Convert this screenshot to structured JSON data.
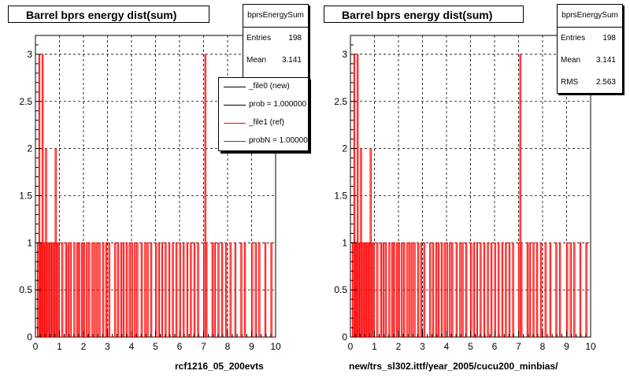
{
  "chart_data": [
    {
      "type": "histogram",
      "title": "Barrel bprs energy dist(sum)",
      "stats": {
        "name": "bprsEnergySum",
        "entries": "198",
        "mean": "3.141",
        "rms": "2.563"
      },
      "x_range": [
        0,
        10
      ],
      "y_range": [
        0,
        3.2
      ],
      "x_ticks": [
        "0",
        "1",
        "2",
        "3",
        "4",
        "5",
        "6",
        "7",
        "8",
        "9",
        "10"
      ],
      "y_ticks": [
        "0",
        "0.5",
        "1",
        "1.5",
        "2",
        "2.5",
        "3"
      ],
      "grid": true,
      "legend": [
        {
          "label": "_file0 (new)",
          "color": "#000000"
        },
        {
          "label": "prob = 1.000000",
          "color": "#000000"
        },
        {
          "label": "_file1 (ref)",
          "color": "#ff0000"
        },
        {
          "label": "probN = 1.000000",
          "color": "#ff0000"
        }
      ],
      "bins": [
        {
          "x": 0.08,
          "y": 1
        },
        {
          "x": 0.14,
          "y": 3
        },
        {
          "x": 0.18,
          "y": 1
        },
        {
          "x": 0.22,
          "y": 1
        },
        {
          "x": 0.28,
          "y": 3
        },
        {
          "x": 0.32,
          "y": 1
        },
        {
          "x": 0.38,
          "y": 1
        },
        {
          "x": 0.42,
          "y": 2
        },
        {
          "x": 0.48,
          "y": 1
        },
        {
          "x": 0.52,
          "y": 1
        },
        {
          "x": 0.58,
          "y": 1
        },
        {
          "x": 0.62,
          "y": 1
        },
        {
          "x": 0.68,
          "y": 1
        },
        {
          "x": 0.72,
          "y": 1
        },
        {
          "x": 0.78,
          "y": 1
        },
        {
          "x": 0.82,
          "y": 2
        },
        {
          "x": 0.88,
          "y": 1
        },
        {
          "x": 0.95,
          "y": 1
        },
        {
          "x": 1.1,
          "y": 1
        },
        {
          "x": 1.25,
          "y": 1
        },
        {
          "x": 1.35,
          "y": 1
        },
        {
          "x": 1.45,
          "y": 1
        },
        {
          "x": 1.6,
          "y": 1
        },
        {
          "x": 1.72,
          "y": 1
        },
        {
          "x": 1.8,
          "y": 1
        },
        {
          "x": 1.92,
          "y": 1
        },
        {
          "x": 2.0,
          "y": 1
        },
        {
          "x": 2.12,
          "y": 1
        },
        {
          "x": 2.22,
          "y": 1
        },
        {
          "x": 2.35,
          "y": 1
        },
        {
          "x": 2.45,
          "y": 1
        },
        {
          "x": 2.55,
          "y": 1
        },
        {
          "x": 2.65,
          "y": 1
        },
        {
          "x": 2.8,
          "y": 1
        },
        {
          "x": 2.92,
          "y": 1
        },
        {
          "x": 3.05,
          "y": 1
        },
        {
          "x": 3.3,
          "y": 1
        },
        {
          "x": 3.42,
          "y": 1
        },
        {
          "x": 3.55,
          "y": 1
        },
        {
          "x": 3.65,
          "y": 1
        },
        {
          "x": 3.78,
          "y": 1
        },
        {
          "x": 3.9,
          "y": 1
        },
        {
          "x": 4.0,
          "y": 1
        },
        {
          "x": 4.12,
          "y": 1
        },
        {
          "x": 4.22,
          "y": 1
        },
        {
          "x": 4.4,
          "y": 1
        },
        {
          "x": 4.55,
          "y": 1
        },
        {
          "x": 4.65,
          "y": 1
        },
        {
          "x": 4.8,
          "y": 1
        },
        {
          "x": 5.0,
          "y": 1
        },
        {
          "x": 5.12,
          "y": 1
        },
        {
          "x": 5.25,
          "y": 1
        },
        {
          "x": 5.4,
          "y": 1
        },
        {
          "x": 5.55,
          "y": 1
        },
        {
          "x": 5.7,
          "y": 1
        },
        {
          "x": 5.85,
          "y": 1
        },
        {
          "x": 6.0,
          "y": 1
        },
        {
          "x": 6.15,
          "y": 1
        },
        {
          "x": 6.3,
          "y": 1
        },
        {
          "x": 6.45,
          "y": 1
        },
        {
          "x": 6.6,
          "y": 1
        },
        {
          "x": 6.75,
          "y": 1
        },
        {
          "x": 7.0,
          "y": 1
        },
        {
          "x": 7.05,
          "y": 3
        },
        {
          "x": 7.1,
          "y": 1
        },
        {
          "x": 7.35,
          "y": 1
        },
        {
          "x": 7.45,
          "y": 1
        },
        {
          "x": 7.6,
          "y": 1
        },
        {
          "x": 7.75,
          "y": 1
        },
        {
          "x": 7.92,
          "y": 1
        },
        {
          "x": 8.1,
          "y": 1
        },
        {
          "x": 8.3,
          "y": 1
        },
        {
          "x": 8.55,
          "y": 1
        },
        {
          "x": 8.7,
          "y": 1
        },
        {
          "x": 9.0,
          "y": 1
        },
        {
          "x": 9.15,
          "y": 1
        },
        {
          "x": 9.3,
          "y": 1
        },
        {
          "x": 9.55,
          "y": 1
        },
        {
          "x": 9.8,
          "y": 1
        }
      ],
      "xlabel": "rcf1216_05_200evts"
    },
    {
      "type": "histogram",
      "title": "Barrel bprs energy dist(sum)",
      "stats": {
        "name": "bprsEnergySum",
        "entries": "198",
        "mean": "3.141",
        "rms": "2.563"
      },
      "x_range": [
        0,
        10
      ],
      "y_range": [
        0,
        3.2
      ],
      "x_ticks": [
        "0",
        "1",
        "2",
        "3",
        "4",
        "5",
        "6",
        "7",
        "8",
        "9",
        "10"
      ],
      "y_ticks": [
        "0",
        "0.5",
        "1",
        "1.5",
        "2",
        "2.5",
        "3"
      ],
      "grid": true,
      "bins": [
        {
          "x": 0.08,
          "y": 1
        },
        {
          "x": 0.14,
          "y": 3
        },
        {
          "x": 0.18,
          "y": 1
        },
        {
          "x": 0.22,
          "y": 1
        },
        {
          "x": 0.28,
          "y": 3
        },
        {
          "x": 0.32,
          "y": 1
        },
        {
          "x": 0.38,
          "y": 1
        },
        {
          "x": 0.42,
          "y": 2
        },
        {
          "x": 0.48,
          "y": 1
        },
        {
          "x": 0.52,
          "y": 1
        },
        {
          "x": 0.58,
          "y": 1
        },
        {
          "x": 0.62,
          "y": 1
        },
        {
          "x": 0.68,
          "y": 1
        },
        {
          "x": 0.72,
          "y": 1
        },
        {
          "x": 0.78,
          "y": 1
        },
        {
          "x": 0.82,
          "y": 2
        },
        {
          "x": 0.88,
          "y": 1
        },
        {
          "x": 0.95,
          "y": 1
        },
        {
          "x": 1.1,
          "y": 1
        },
        {
          "x": 1.25,
          "y": 1
        },
        {
          "x": 1.35,
          "y": 1
        },
        {
          "x": 1.45,
          "y": 1
        },
        {
          "x": 1.6,
          "y": 1
        },
        {
          "x": 1.72,
          "y": 1
        },
        {
          "x": 1.8,
          "y": 1
        },
        {
          "x": 1.92,
          "y": 1
        },
        {
          "x": 2.0,
          "y": 1
        },
        {
          "x": 2.12,
          "y": 1
        },
        {
          "x": 2.22,
          "y": 1
        },
        {
          "x": 2.35,
          "y": 1
        },
        {
          "x": 2.45,
          "y": 1
        },
        {
          "x": 2.55,
          "y": 1
        },
        {
          "x": 2.65,
          "y": 1
        },
        {
          "x": 2.8,
          "y": 1
        },
        {
          "x": 2.92,
          "y": 1
        },
        {
          "x": 3.05,
          "y": 1
        },
        {
          "x": 3.3,
          "y": 1
        },
        {
          "x": 3.42,
          "y": 1
        },
        {
          "x": 3.55,
          "y": 1
        },
        {
          "x": 3.65,
          "y": 1
        },
        {
          "x": 3.78,
          "y": 1
        },
        {
          "x": 3.9,
          "y": 1
        },
        {
          "x": 4.0,
          "y": 1
        },
        {
          "x": 4.12,
          "y": 1
        },
        {
          "x": 4.22,
          "y": 1
        },
        {
          "x": 4.4,
          "y": 1
        },
        {
          "x": 4.55,
          "y": 1
        },
        {
          "x": 4.65,
          "y": 1
        },
        {
          "x": 4.8,
          "y": 1
        },
        {
          "x": 5.0,
          "y": 1
        },
        {
          "x": 5.12,
          "y": 1
        },
        {
          "x": 5.25,
          "y": 1
        },
        {
          "x": 5.4,
          "y": 1
        },
        {
          "x": 5.55,
          "y": 1
        },
        {
          "x": 5.7,
          "y": 1
        },
        {
          "x": 5.85,
          "y": 1
        },
        {
          "x": 6.0,
          "y": 1
        },
        {
          "x": 6.15,
          "y": 1
        },
        {
          "x": 6.3,
          "y": 1
        },
        {
          "x": 6.45,
          "y": 1
        },
        {
          "x": 6.6,
          "y": 1
        },
        {
          "x": 6.75,
          "y": 1
        },
        {
          "x": 7.0,
          "y": 1
        },
        {
          "x": 7.05,
          "y": 3
        },
        {
          "x": 7.1,
          "y": 1
        },
        {
          "x": 7.35,
          "y": 1
        },
        {
          "x": 7.45,
          "y": 1
        },
        {
          "x": 7.6,
          "y": 1
        },
        {
          "x": 7.75,
          "y": 1
        },
        {
          "x": 7.92,
          "y": 1
        },
        {
          "x": 8.1,
          "y": 1
        },
        {
          "x": 8.3,
          "y": 1
        },
        {
          "x": 8.55,
          "y": 1
        },
        {
          "x": 8.7,
          "y": 1
        },
        {
          "x": 9.0,
          "y": 1
        },
        {
          "x": 9.15,
          "y": 1
        },
        {
          "x": 9.3,
          "y": 1
        },
        {
          "x": 9.55,
          "y": 1
        },
        {
          "x": 9.8,
          "y": 1
        }
      ],
      "xlabel": "new/trs_sl302.ittf/year_2005/cucu200_minbias/"
    }
  ],
  "colors": {
    "hist_line": "#ff0000",
    "axis": "#000000",
    "grid": "#000000"
  }
}
